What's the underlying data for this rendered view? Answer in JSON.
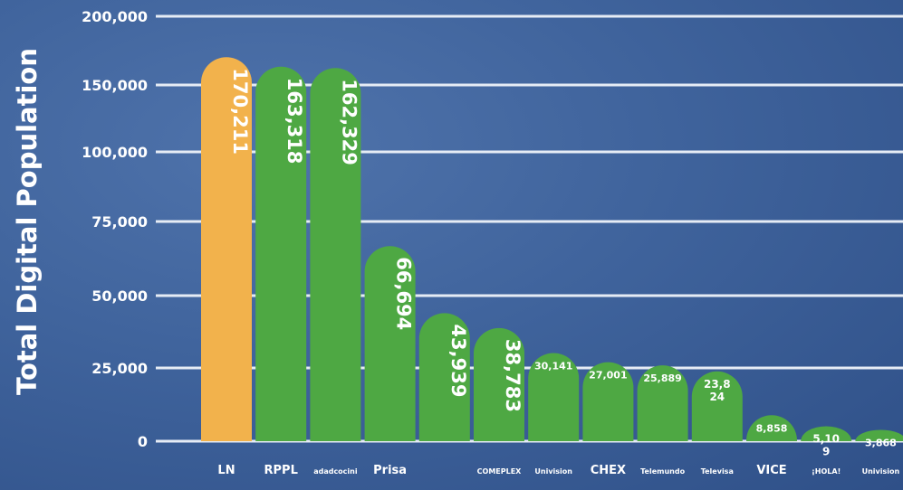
{
  "chart_data": {
    "type": "bar",
    "ylabel": "Total Digital Population",
    "yticks": [
      0,
      25000,
      50000,
      75000,
      100000,
      150000,
      200000
    ],
    "ytick_labels": [
      "0",
      "25,000",
      "50,000",
      "75,000",
      "100,000",
      "150,000",
      "200,000"
    ],
    "grid": true,
    "categories": [
      "LN",
      "RPPL",
      "adadcocini",
      "Prisa",
      "",
      "COMEPLEX",
      "Univision",
      "CHEX",
      "Telemundo",
      "Televisa",
      "VICE",
      "¡HOLA!",
      "Univision"
    ],
    "values": [
      170211,
      163318,
      162329,
      66694,
      43939,
      38783,
      30141,
      27001,
      25889,
      23824,
      8858,
      5109,
      3868
    ],
    "value_labels": [
      "170,211",
      "163,318",
      "162,329",
      "66,694",
      "43,939",
      "38,783",
      "30,141",
      "27,001",
      "25,889",
      "23,8\n24",
      "8,858",
      "5,10\n9",
      "3,868"
    ],
    "colors": {
      "highlight": "#f2b24c",
      "bars": "#4ea843",
      "gridlines": "#e6ecf5",
      "text": "#ffffff"
    },
    "highlight_index": 0
  }
}
